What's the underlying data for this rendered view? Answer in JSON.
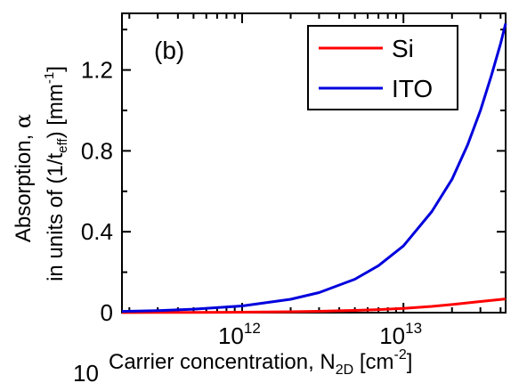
{
  "chart_data": {
    "type": "line",
    "panel_label": "(b)",
    "xlabel": {
      "main": "Carrier concentration, N",
      "sub": "2D",
      "unit_open": " [cm",
      "unit_sup": "-2",
      "unit_close": "]"
    },
    "ylabel": {
      "line1": {
        "text": "Absorption, ",
        "symbol": "α"
      },
      "line2": {
        "text": "in units of (1/t",
        "sub": "eff",
        "mid": ") [mm",
        "sup": "-1",
        "close": "]"
      }
    },
    "x_scale": "log",
    "xlim": [
      180000000000.0,
      43000000000000.0
    ],
    "ylim": [
      0,
      1.48
    ],
    "y_ticks": [
      {
        "value": 0,
        "label": "0"
      },
      {
        "value": 0.4,
        "label": "0.4"
      },
      {
        "value": 0.8,
        "label": "0.8"
      },
      {
        "value": 1.2,
        "label": "1.2"
      }
    ],
    "x_ticks": [
      {
        "value": 1000000000000.0,
        "base": "10",
        "exp": "12"
      },
      {
        "value": 10000000000000.0,
        "base": "10",
        "exp": "13"
      }
    ],
    "grid": false,
    "legend_position": "top-right",
    "series": [
      {
        "name": "Si",
        "color": "#ff0000",
        "x": [
          180000000000.0,
          300000000000.0,
          500000000000.0,
          1000000000000.0,
          2000000000000.0,
          3000000000000.0,
          5000000000000.0,
          7000000000000.0,
          10000000000000.0,
          15000000000000.0,
          20000000000000.0,
          30000000000000.0,
          43000000000000.0
        ],
        "y": [
          0.0004,
          0.0007,
          0.0011,
          0.0022,
          0.0043,
          0.0064,
          0.011,
          0.015,
          0.021,
          0.031,
          0.04,
          0.055,
          0.068
        ]
      },
      {
        "name": "ITO",
        "color": "#0000dd",
        "x": [
          180000000000.0,
          300000000000.0,
          500000000000.0,
          1000000000000.0,
          2000000000000.0,
          3000000000000.0,
          5000000000000.0,
          7000000000000.0,
          10000000000000.0,
          15000000000000.0,
          20000000000000.0,
          25000000000000.0,
          30000000000000.0,
          35000000000000.0,
          40000000000000.0,
          43000000000000.0
        ],
        "y": [
          0.006,
          0.01,
          0.017,
          0.033,
          0.066,
          0.099,
          0.165,
          0.232,
          0.33,
          0.5,
          0.66,
          0.83,
          1.0,
          1.17,
          1.33,
          1.43
        ]
      }
    ]
  },
  "stray_text": "10"
}
